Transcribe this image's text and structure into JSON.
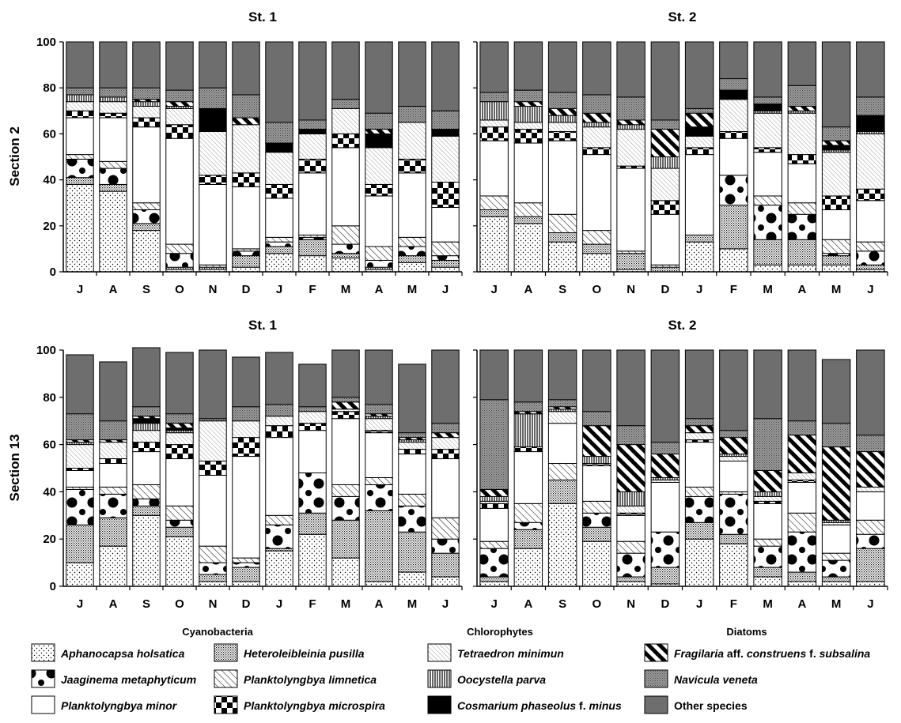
{
  "chart_data": {
    "type": "bar",
    "stacked": true,
    "percent": true,
    "months": [
      "J",
      "A",
      "S",
      "O",
      "N",
      "D",
      "J",
      "F",
      "M",
      "A",
      "M",
      "J"
    ],
    "ylim": [
      0,
      100
    ],
    "yticks": [
      "0",
      "20",
      "40",
      "60",
      "80",
      "100"
    ],
    "row_labels": [
      "Section 2",
      "Section 13"
    ],
    "panel_titles": [
      "St. 1",
      "St. 2",
      "St. 1",
      "St. 2"
    ],
    "species": [
      {
        "name": "Aphanocapsa holsatica",
        "pattern": "dots"
      },
      {
        "name": "Heteroleibleinia pusilla",
        "pattern": "dense"
      },
      {
        "name": "Jaaginema metaphyticum",
        "pattern": "bigdots"
      },
      {
        "name": "Planktolyngbya limnetica",
        "pattern": "diagthin"
      },
      {
        "name": "Planktolyngbya minor",
        "pattern": "white"
      },
      {
        "name": "Planktolyngbya microspira",
        "pattern": "checker"
      },
      {
        "name": "Tetraedron minimun",
        "pattern": "lightdiag"
      },
      {
        "name": "Oocystella parva",
        "pattern": "vlines"
      },
      {
        "name": "Cosmarium phaseolus f. minus",
        "pattern": "black"
      },
      {
        "name": "Fragilaria aff. construens f. subsalina",
        "pattern": "thickdiag"
      },
      {
        "name": "Navicula veneta",
        "pattern": "grayhatch"
      },
      {
        "name": "Other species",
        "pattern": "darkgray"
      }
    ],
    "panels": [
      {
        "title": "St. 1",
        "row": "Section 2",
        "values": [
          [
            38,
            35,
            18,
            1,
            1,
            2,
            8,
            7,
            6,
            1,
            4,
            2
          ],
          [
            3,
            3,
            3,
            1,
            1,
            5,
            3,
            7,
            2,
            1,
            3,
            3
          ],
          [
            8,
            7,
            6,
            6,
            0,
            2,
            2,
            1,
            4,
            3,
            4,
            2
          ],
          [
            2,
            3,
            3,
            4,
            1,
            1,
            2,
            1,
            8,
            6,
            4,
            6
          ],
          [
            16,
            19,
            33,
            46,
            35,
            27,
            17,
            27,
            34,
            22,
            28,
            15
          ],
          [
            3,
            2,
            4,
            6,
            4,
            6,
            6,
            6,
            6,
            5,
            6,
            11
          ],
          [
            4,
            5,
            5,
            7,
            19,
            21,
            14,
            11,
            11,
            16,
            16,
            20
          ],
          [
            3,
            2,
            2,
            1,
            0,
            0,
            0,
            0,
            0,
            0,
            0,
            0
          ],
          [
            0,
            0,
            0,
            0,
            10,
            0,
            4,
            2,
            0,
            6,
            0,
            3
          ],
          [
            0,
            0,
            1,
            2,
            0,
            3,
            0,
            0,
            0,
            2,
            0,
            0
          ],
          [
            3,
            4,
            5,
            5,
            9,
            10,
            9,
            4,
            4,
            7,
            7,
            8
          ],
          [
            20,
            20,
            20,
            21,
            20,
            23,
            35,
            34,
            25,
            31,
            28,
            30
          ]
        ]
      },
      {
        "title": "St. 2",
        "row": "Section 2",
        "values": [
          [
            24,
            21,
            13,
            8,
            1,
            0,
            13,
            10,
            3,
            3,
            3,
            1
          ],
          [
            3,
            3,
            4,
            4,
            7,
            2,
            3,
            19,
            11,
            11,
            4,
            2
          ],
          [
            0,
            0,
            0,
            0,
            0,
            0,
            0,
            13,
            15,
            11,
            1,
            6
          ],
          [
            6,
            6,
            8,
            6,
            1,
            1,
            0,
            0,
            4,
            5,
            6,
            4
          ],
          [
            24,
            26,
            32,
            33,
            36,
            22,
            35,
            16,
            19,
            17,
            13,
            18
          ],
          [
            6,
            6,
            4,
            3,
            1,
            6,
            3,
            3,
            2,
            4,
            6,
            5
          ],
          [
            3,
            3,
            4,
            9,
            16,
            14,
            5,
            14,
            15,
            18,
            19,
            24
          ],
          [
            8,
            7,
            3,
            2,
            2,
            5,
            0,
            0,
            1,
            1,
            1,
            1
          ],
          [
            0,
            0,
            0,
            0,
            0,
            0,
            4,
            4,
            3,
            0,
            2,
            7
          ],
          [
            0,
            2,
            3,
            4,
            2,
            12,
            6,
            0,
            0,
            2,
            2,
            0
          ],
          [
            4,
            5,
            7,
            8,
            10,
            4,
            2,
            5,
            3,
            9,
            6,
            8
          ],
          [
            22,
            21,
            22,
            23,
            24,
            34,
            29,
            16,
            24,
            19,
            37,
            24
          ]
        ]
      },
      {
        "title": "St. 1",
        "row": "Section 13",
        "values": [
          [
            10,
            17,
            30,
            21,
            2,
            2,
            15,
            22,
            12,
            2,
            6,
            4
          ],
          [
            16,
            12,
            4,
            4,
            3,
            6,
            1,
            9,
            16,
            30,
            17,
            10
          ],
          [
            15,
            10,
            3,
            3,
            5,
            2,
            10,
            17,
            10,
            11,
            11,
            6
          ],
          [
            1,
            3,
            6,
            6,
            7,
            2,
            4,
            0,
            5,
            3,
            5,
            9
          ],
          [
            7,
            10,
            14,
            20,
            30,
            43,
            33,
            18,
            28,
            19,
            17,
            25
          ],
          [
            1,
            2,
            4,
            6,
            6,
            8,
            5,
            3,
            3,
            1,
            2,
            4
          ],
          [
            10,
            7,
            5,
            5,
            17,
            7,
            4,
            5,
            1,
            5,
            3,
            5
          ],
          [
            1,
            0,
            3,
            1,
            0,
            0,
            0,
            0,
            0,
            1,
            1,
            0
          ],
          [
            0,
            0,
            2,
            1,
            0,
            0,
            0,
            0,
            0,
            0,
            0,
            0
          ],
          [
            1,
            1,
            1,
            2,
            0,
            0,
            0,
            0,
            3,
            1,
            1,
            2
          ],
          [
            11,
            8,
            4,
            4,
            1,
            6,
            5,
            2,
            2,
            4,
            2,
            4
          ],
          [
            25,
            25,
            25,
            26,
            29,
            21,
            22,
            18,
            20,
            23,
            29,
            31
          ]
        ]
      },
      {
        "title": "St. 2",
        "row": "Section 13",
        "values": [
          [
            2,
            16,
            35,
            19,
            2,
            1,
            20,
            18,
            4,
            2,
            2,
            2
          ],
          [
            2,
            8,
            10,
            6,
            2,
            7,
            7,
            4,
            4,
            4,
            2,
            14
          ],
          [
            12,
            3,
            0,
            6,
            10,
            15,
            11,
            17,
            9,
            17,
            7,
            6
          ],
          [
            3,
            8,
            7,
            5,
            5,
            0,
            4,
            1,
            3,
            8,
            3,
            6
          ],
          [
            14,
            22,
            17,
            15,
            11,
            21,
            19,
            13,
            15,
            13,
            12,
            12
          ],
          [
            2,
            2,
            0,
            1,
            1,
            0,
            1,
            0,
            1,
            1,
            0,
            0
          ],
          [
            1,
            0,
            5,
            0,
            3,
            1,
            3,
            2,
            2,
            3,
            1,
            2
          ],
          [
            2,
            14,
            1,
            3,
            6,
            1,
            0,
            1,
            2,
            0,
            1,
            0
          ],
          [
            0,
            0,
            0,
            0,
            0,
            0,
            0,
            0,
            0,
            0,
            0,
            0
          ],
          [
            3,
            1,
            1,
            13,
            20,
            10,
            3,
            7,
            9,
            16,
            31,
            15
          ],
          [
            38,
            4,
            3,
            6,
            8,
            5,
            3,
            3,
            22,
            6,
            10,
            7
          ],
          [
            21,
            22,
            21,
            26,
            32,
            39,
            29,
            34,
            29,
            30,
            27,
            36
          ]
        ]
      }
    ],
    "legend_groups": [
      "Cyanobacteria",
      "Chlorophytes",
      "Diatoms"
    ]
  },
  "legend": {
    "items": [
      {
        "text": "Aphanocapsa holsatica",
        "italic": true
      },
      {
        "text": "Heteroleibleinia pusilla",
        "italic": true
      },
      {
        "text": "Tetraedron minimun",
        "italic": true
      },
      {
        "text": "Fragilaria",
        "italic": true,
        "suffix": " aff. ",
        "rest": "construens",
        "rest_suffix": " f. ",
        "rest2": "subsalina"
      },
      {
        "text": "Jaaginema metaphyticum",
        "italic": true
      },
      {
        "text": "Planktolyngbya limnetica",
        "italic": true
      },
      {
        "text": "Oocystella parva",
        "italic": true
      },
      {
        "text": "Navicula veneta",
        "italic": true
      },
      {
        "text": "Planktolyngbya minor",
        "italic": true
      },
      {
        "text": "Planktolyngbya microspira",
        "italic": true
      },
      {
        "text": "Cosmarium phaseolus",
        "italic": true,
        "suffix": " f. ",
        "rest": "minus"
      },
      {
        "text": "Other species",
        "italic": false
      }
    ]
  }
}
